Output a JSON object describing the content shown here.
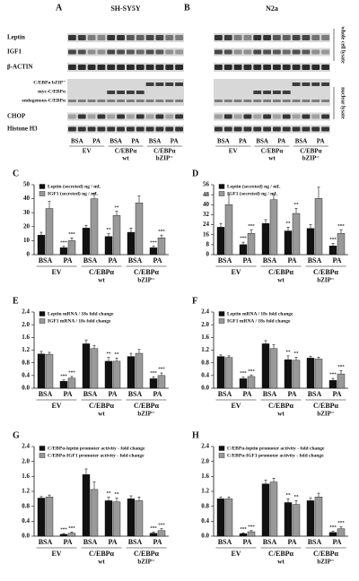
{
  "blots": {
    "panels": [
      {
        "letter": "A",
        "cell_line": "SH-SY5Y"
      },
      {
        "letter": "B",
        "cell_line": "N2a"
      }
    ],
    "row_labels": [
      "Leptin",
      "IGF1",
      "β-ACTIN",
      "C/EBPα bZIP⁻",
      "myc-C/EBPα",
      "endogenous-C/EBPα",
      "CHOP",
      "Histone H3"
    ],
    "side_labels": [
      "whole cell lysate",
      "nuclear lysate"
    ],
    "lane_labels": [
      "BSA",
      "PA",
      "BSA",
      "PA",
      "BSA",
      "PA"
    ],
    "groups": [
      {
        "name": "EV"
      },
      {
        "name": "C/EBPα",
        "sub": "wt"
      },
      {
        "name": "C/EBPα",
        "sub": "bZIP⁻"
      }
    ]
  },
  "chart_data": [
    {
      "type": "bar",
      "panel": "C",
      "categories": [
        "BSA",
        "PA",
        "BSA",
        "PA",
        "BSA",
        "PA"
      ],
      "groups": [
        {
          "name": "EV"
        },
        {
          "name": "C/EBPα",
          "sub": "wt"
        },
        {
          "name": "C/EBPα",
          "sub": "bZIP⁻"
        }
      ],
      "ylim": [
        0,
        50
      ],
      "yticks": [
        0,
        10,
        20,
        30,
        40,
        50
      ],
      "series": [
        {
          "name": "Leptin (secreted) ng / mL",
          "color": "#111111",
          "values": [
            14,
            5,
            19,
            13,
            16,
            5
          ],
          "errors": [
            2,
            1,
            2,
            2,
            3,
            1
          ],
          "significance": [
            null,
            "***",
            null,
            "**",
            null,
            "***"
          ]
        },
        {
          "name": "IGF1 (secreted) ng / mL",
          "color": "#999999",
          "values": [
            33,
            10,
            40,
            28,
            37,
            12
          ],
          "errors": [
            5,
            2,
            4,
            3,
            5,
            2
          ],
          "significance": [
            null,
            "***",
            null,
            "**",
            null,
            "***"
          ]
        }
      ]
    },
    {
      "type": "bar",
      "panel": "D",
      "categories": [
        "BSA",
        "PA",
        "BSA",
        "PA",
        "BSA",
        "PA"
      ],
      "groups": [
        {
          "name": "EV"
        },
        {
          "name": "C/EBPα",
          "sub": "wt"
        },
        {
          "name": "C/EBPα",
          "sub": "bZIP⁻"
        }
      ],
      "ylim": [
        0,
        56
      ],
      "yticks": [
        0,
        8,
        16,
        24,
        32,
        40,
        48,
        56
      ],
      "series": [
        {
          "name": "Leptin (secreted) ng / mL",
          "color": "#111111",
          "values": [
            22,
            8,
            25,
            19,
            21,
            7
          ],
          "errors": [
            3,
            2,
            3,
            3,
            3,
            2
          ],
          "significance": [
            null,
            "***",
            null,
            "**",
            null,
            "***"
          ]
        },
        {
          "name": "IGF1 (secreted) ng / mL",
          "color": "#999999",
          "values": [
            40,
            17,
            44,
            33,
            45,
            17
          ],
          "errors": [
            8,
            3,
            4,
            4,
            9,
            3
          ],
          "significance": [
            null,
            "***",
            null,
            "**",
            null,
            "***"
          ]
        }
      ]
    },
    {
      "type": "bar",
      "panel": "E",
      "categories": [
        "BSA",
        "PA",
        "BSA",
        "PA",
        "BSA",
        "PA"
      ],
      "groups": [
        {
          "name": "EV"
        },
        {
          "name": "C/EBPα",
          "sub": "wt"
        },
        {
          "name": "C/EBPα",
          "sub": "bZIP⁻"
        }
      ],
      "ylim": [
        0,
        2.4
      ],
      "yticks": [
        {
          "value": 0,
          "label": "0.0"
        },
        0.4,
        0.8,
        1.2,
        1.6,
        {
          "value": 2,
          "label": "2.0"
        },
        2.4
      ],
      "series": [
        {
          "name": "Leptin mRNA / 18s  fold change",
          "color": "#111111",
          "values": [
            1.08,
            0.22,
            1.4,
            0.85,
            1,
            0.3
          ],
          "errors": [
            0.08,
            0.04,
            0.12,
            0.12,
            0.1,
            0.06
          ],
          "significance": [
            null,
            "***",
            null,
            "**",
            null,
            "***"
          ]
        },
        {
          "name": "IGF1 mRNA / 18s  fold change",
          "color": "#999999",
          "values": [
            1.07,
            0.32,
            1.25,
            0.85,
            1.1,
            0.4
          ],
          "errors": [
            0.06,
            0.05,
            0.1,
            0.1,
            0.12,
            0.08
          ],
          "significance": [
            null,
            "***",
            null,
            "**",
            null,
            "***"
          ]
        }
      ]
    },
    {
      "type": "bar",
      "panel": "F",
      "categories": [
        "BSA",
        "PA",
        "BSA",
        "PA",
        "BSA",
        "PA"
      ],
      "groups": [
        {
          "name": "EV"
        },
        {
          "name": "C/EBPα",
          "sub": "wt"
        },
        {
          "name": "C/EBPα",
          "sub": "bZIP⁻"
        }
      ],
      "ylim": [
        0,
        2.4
      ],
      "yticks": [
        {
          "value": 0,
          "label": "0.0"
        },
        0.4,
        0.8,
        1.2,
        1.6,
        {
          "value": 2,
          "label": "2.0"
        },
        2.4
      ],
      "series": [
        {
          "name": "Leptin mRNA / 18s  fold change",
          "color": "#111111",
          "values": [
            1,
            0.3,
            1.4,
            0.9,
            0.95,
            0.25
          ],
          "errors": [
            0.05,
            0.05,
            0.1,
            0.12,
            0.06,
            0.06
          ],
          "significance": [
            null,
            "***",
            null,
            "**",
            null,
            "***"
          ]
        },
        {
          "name": "IGF1 mRNA / 18s  fold change",
          "color": "#999999",
          "values": [
            0.97,
            0.37,
            1.25,
            0.88,
            0.92,
            0.45
          ],
          "errors": [
            0.05,
            0.05,
            0.12,
            0.1,
            0.06,
            0.1
          ],
          "significance": [
            null,
            "***",
            null,
            "**",
            null,
            "***"
          ]
        }
      ]
    },
    {
      "type": "bar",
      "panel": "G",
      "categories": [
        "BSA",
        "PA",
        "BSA",
        "PA",
        "BSA",
        "PA"
      ],
      "groups": [
        {
          "name": "EV"
        },
        {
          "name": "C/EBPα",
          "sub": "wt"
        },
        {
          "name": "C/EBPα",
          "sub": "bZIP⁻"
        }
      ],
      "ylim": [
        0,
        2.4
      ],
      "yticks": [
        {
          "value": 0,
          "label": "0.0"
        },
        0.4,
        0.8,
        1.2,
        1.6,
        {
          "value": 2,
          "label": "2.0"
        },
        2.4
      ],
      "series": [
        {
          "name": "C/EBPα-leptin promoter activity - fold change",
          "color": "#111111",
          "values": [
            1.02,
            0.05,
            1.65,
            0.95,
            1,
            0.08
          ],
          "errors": [
            0.04,
            0.02,
            0.15,
            0.1,
            0.08,
            0.03
          ],
          "significance": [
            null,
            "***",
            null,
            "**",
            null,
            "***"
          ]
        },
        {
          "name": "C/EBPα-IGF1 promoter activity - fold change",
          "color": "#999999",
          "values": [
            1.05,
            0.08,
            1.25,
            0.92,
            0.95,
            0.15
          ],
          "errors": [
            0.05,
            0.03,
            0.2,
            0.1,
            0.1,
            0.05
          ],
          "significance": [
            null,
            "***",
            null,
            "**",
            null,
            "***"
          ]
        }
      ]
    },
    {
      "type": "bar",
      "panel": "H",
      "categories": [
        "BSA",
        "PA",
        "BSA",
        "PA",
        "BSA",
        "PA"
      ],
      "groups": [
        {
          "name": "EV"
        },
        {
          "name": "C/EBPα",
          "sub": "wt"
        },
        {
          "name": "C/EBPα",
          "sub": "bZIP⁻"
        }
      ],
      "ylim": [
        0,
        2.4
      ],
      "yticks": [
        {
          "value": 0,
          "label": "0.0"
        },
        0.4,
        0.8,
        1.2,
        1.6,
        {
          "value": 2,
          "label": "2.0"
        },
        2.4
      ],
      "series": [
        {
          "name": "C/EBPα-leptin promoter activity - fold change",
          "color": "#111111",
          "values": [
            1,
            0.07,
            1.4,
            0.9,
            0.95,
            0.1
          ],
          "errors": [
            0.05,
            0.02,
            0.1,
            0.1,
            0.08,
            0.03
          ],
          "significance": [
            null,
            "***",
            null,
            "**",
            null,
            "***"
          ]
        },
        {
          "name": "C/EBPα-IGF1 promoter activity - fold change",
          "color": "#999999",
          "values": [
            1,
            0.12,
            1.45,
            0.85,
            1.05,
            0.2
          ],
          "errors": [
            0.05,
            0.03,
            0.1,
            0.1,
            0.1,
            0.05
          ],
          "significance": [
            null,
            "***",
            null,
            "**",
            null,
            "***"
          ]
        }
      ]
    }
  ]
}
